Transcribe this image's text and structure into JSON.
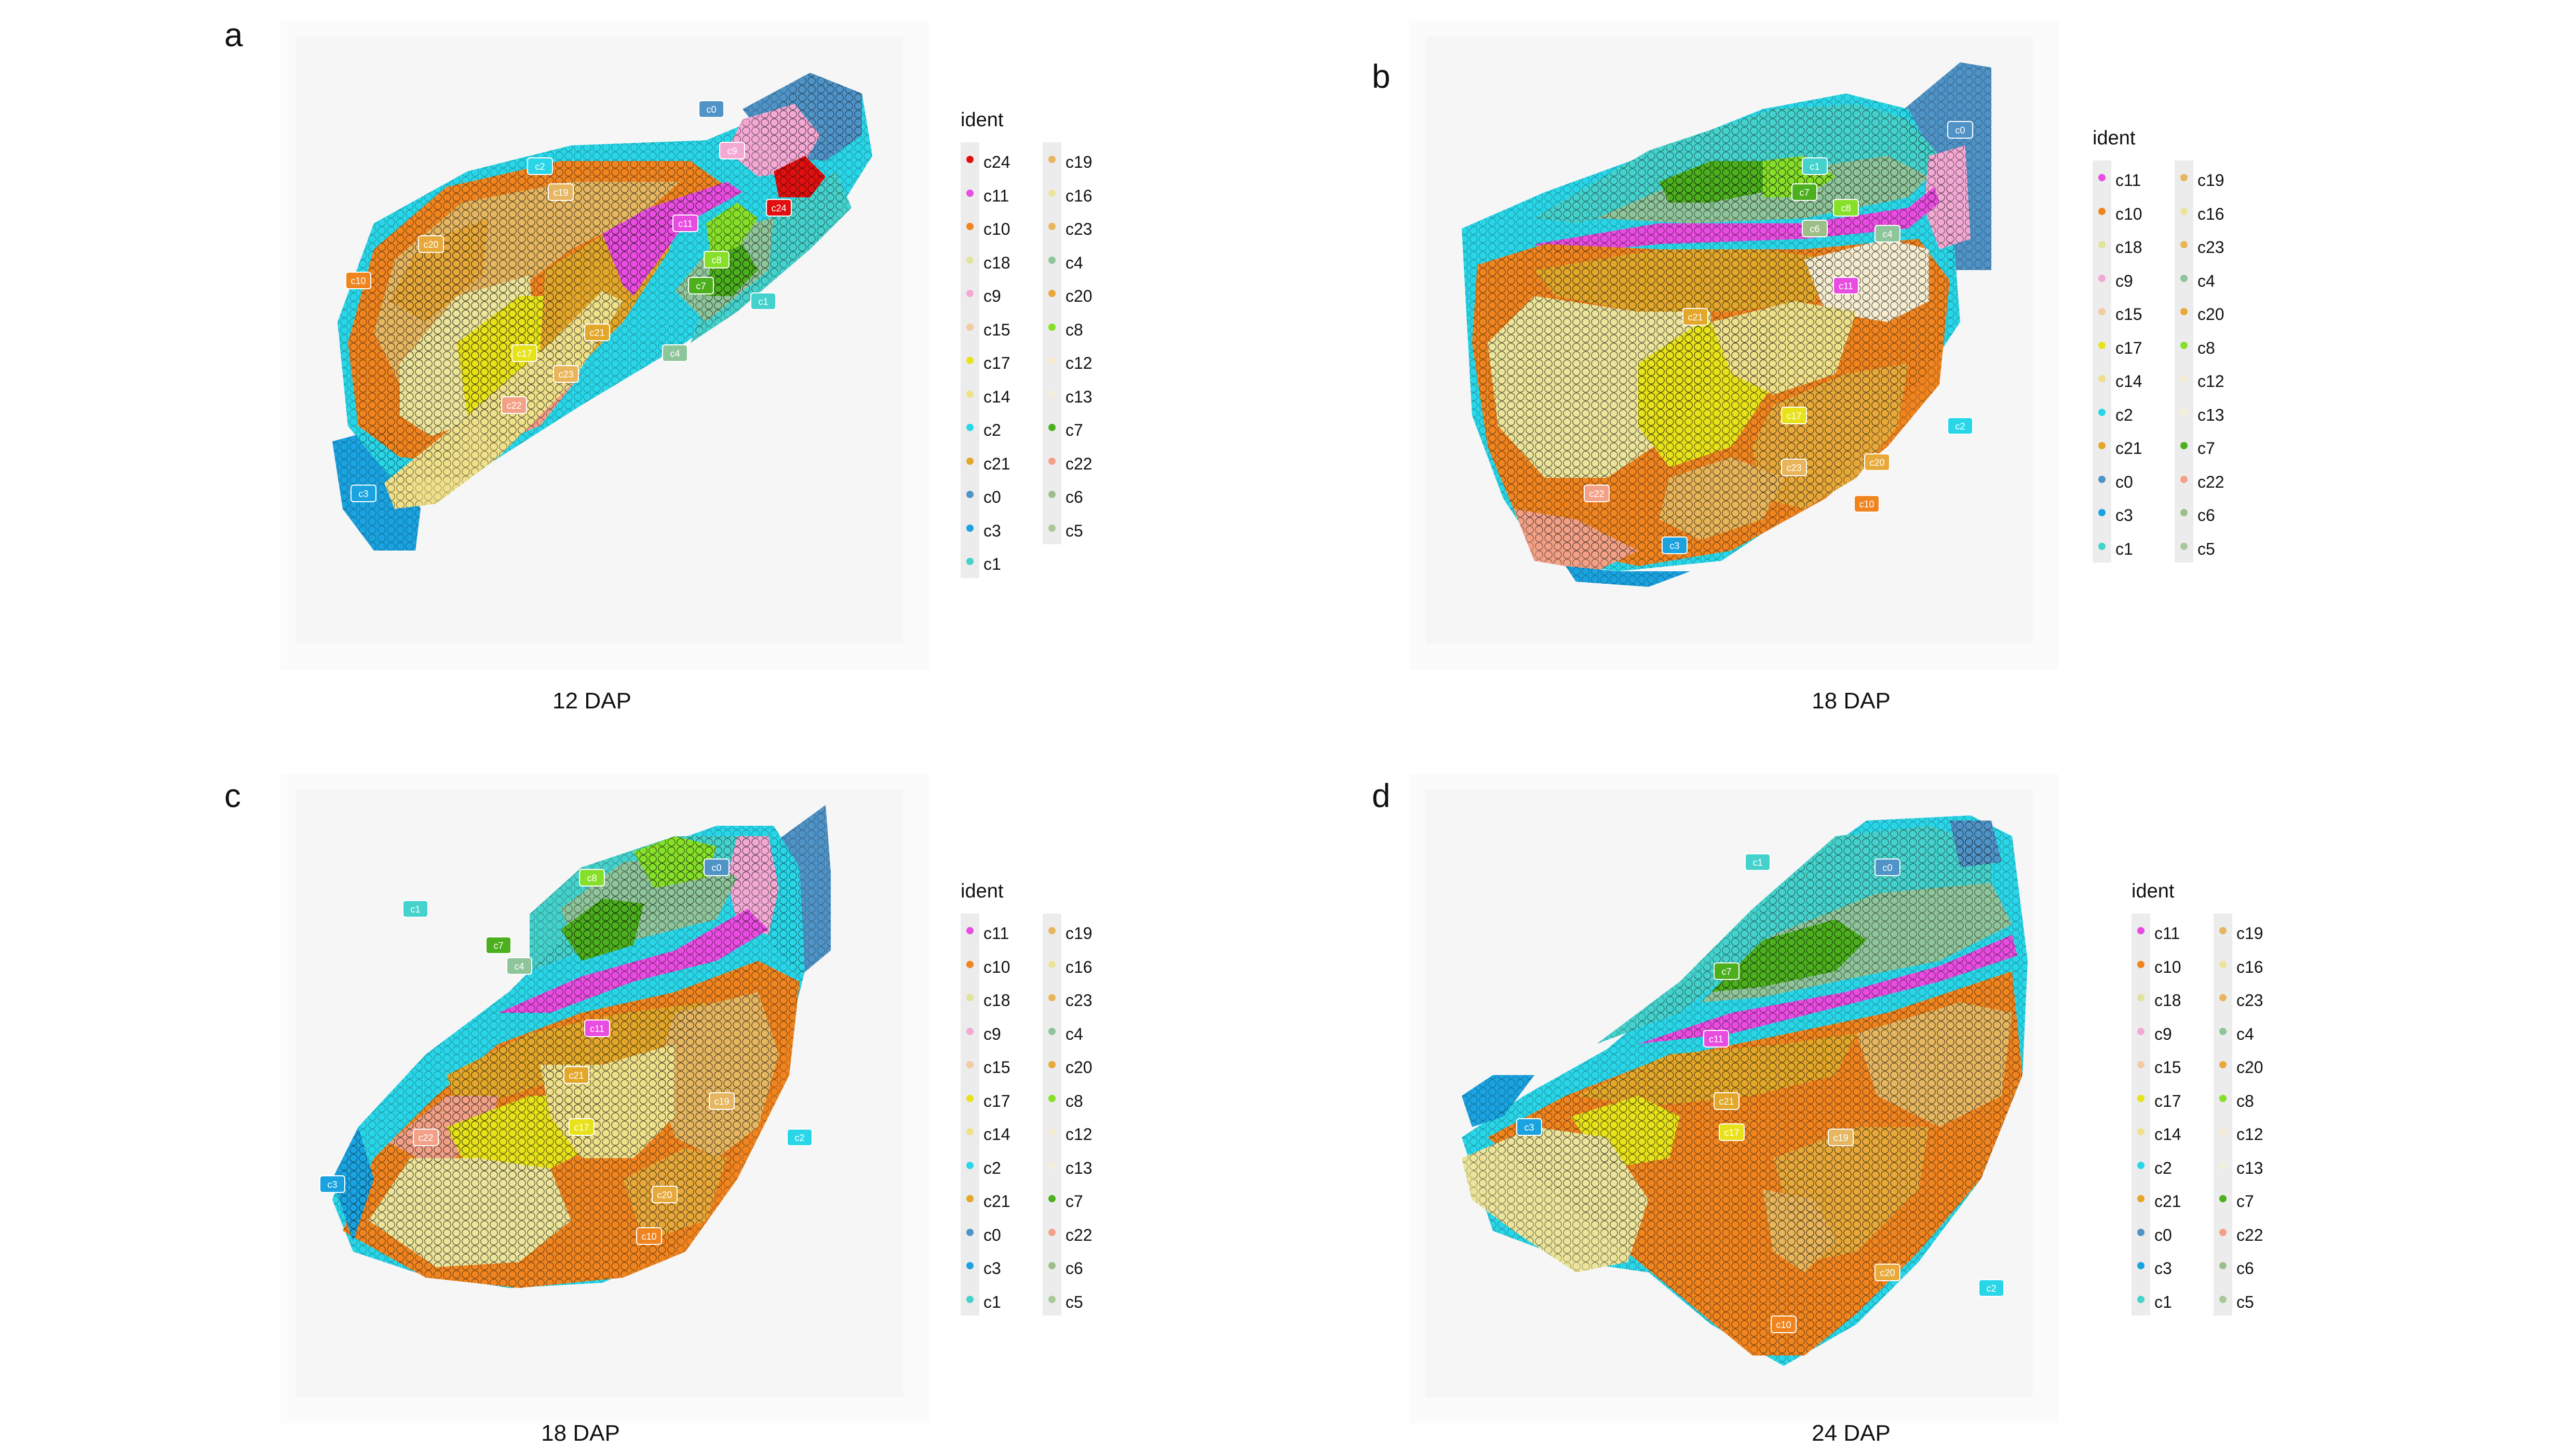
{
  "panels": [
    {
      "letter": "a",
      "caption": "12  DAP",
      "legend": {
        "title": "ident",
        "col1": [
          "c24",
          "c11",
          "c10",
          "c18",
          "c9",
          "c15",
          "c17",
          "c14",
          "c2",
          "c21",
          "c0",
          "c3",
          "c1"
        ],
        "col2": [
          "c19",
          "c16",
          "c23",
          "c4",
          "c20",
          "c8",
          "c12",
          "c13",
          "c7",
          "c22",
          "c6",
          "c5"
        ]
      },
      "map_labels": [
        "c0",
        "c9",
        "c2",
        "c19",
        "c24",
        "c20",
        "c11",
        "c8",
        "c10",
        "c7",
        "c1",
        "c21",
        "c4",
        "c17",
        "c23",
        "c22",
        "c3"
      ]
    },
    {
      "letter": "b",
      "caption": "18  DAP",
      "legend": {
        "title": "ident",
        "col1": [
          "c11",
          "c10",
          "c18",
          "c9",
          "c15",
          "c17",
          "c14",
          "c2",
          "c21",
          "c0",
          "c3",
          "c1"
        ],
        "col2": [
          "c19",
          "c16",
          "c23",
          "c4",
          "c20",
          "c8",
          "c12",
          "c13",
          "c7",
          "c22",
          "c6",
          "c5"
        ]
      },
      "map_labels": [
        "c0",
        "c1",
        "c7",
        "c6",
        "c8",
        "c4",
        "c11",
        "c21",
        "c17",
        "c2",
        "c23",
        "c20",
        "c22",
        "c10",
        "c3"
      ]
    },
    {
      "letter": "c",
      "caption": "18  DAP",
      "legend": {
        "title": "ident",
        "col1": [
          "c11",
          "c10",
          "c18",
          "c9",
          "c15",
          "c17",
          "c14",
          "c2",
          "c21",
          "c0",
          "c3",
          "c1"
        ],
        "col2": [
          "c19",
          "c16",
          "c23",
          "c4",
          "c20",
          "c8",
          "c12",
          "c13",
          "c7",
          "c22",
          "c6",
          "c5"
        ]
      },
      "map_labels": [
        "c1",
        "c8",
        "c0",
        "c7",
        "c4",
        "c11",
        "c21",
        "c22",
        "c17",
        "c19",
        "c2",
        "c3",
        "c20",
        "c10"
      ]
    },
    {
      "letter": "d",
      "caption": "24  DAP",
      "legend": {
        "title": "ident",
        "col1": [
          "c11",
          "c10",
          "c18",
          "c9",
          "c15",
          "c17",
          "c14",
          "c2",
          "c21",
          "c0",
          "c3",
          "c1"
        ],
        "col2": [
          "c19",
          "c16",
          "c23",
          "c4",
          "c20",
          "c8",
          "c12",
          "c13",
          "c7",
          "c22",
          "c6",
          "c5"
        ]
      },
      "map_labels": [
        "c1",
        "c0",
        "c7",
        "c11",
        "c21",
        "c3",
        "c17",
        "c19",
        "c20",
        "c2",
        "c10"
      ]
    }
  ],
  "cluster_colors": {
    "c0": "#4f93c7",
    "c1": "#45d2cc",
    "c2": "#29d6e8",
    "c3": "#1aa3e0",
    "c4": "#8fc59a",
    "c5": "#a9c99a",
    "c6": "#9cbf8a",
    "c7": "#4caf1e",
    "c8": "#86e02a",
    "c9": "#f3a9d4",
    "c10": "#f0841f",
    "c11": "#e94ce0",
    "c12": "#f6ecd0",
    "c13": "#f2f0d8",
    "c14": "#efe08a",
    "c15": "#f1cba2",
    "c16": "#ebe49a",
    "c17": "#e8e21a",
    "c18": "#dfe49c",
    "c19": "#e6b660",
    "c20": "#e8a93a",
    "c21": "#e3a72a",
    "c22": "#f2a086",
    "c23": "#e9b55a",
    "c24": "#e01010"
  }
}
